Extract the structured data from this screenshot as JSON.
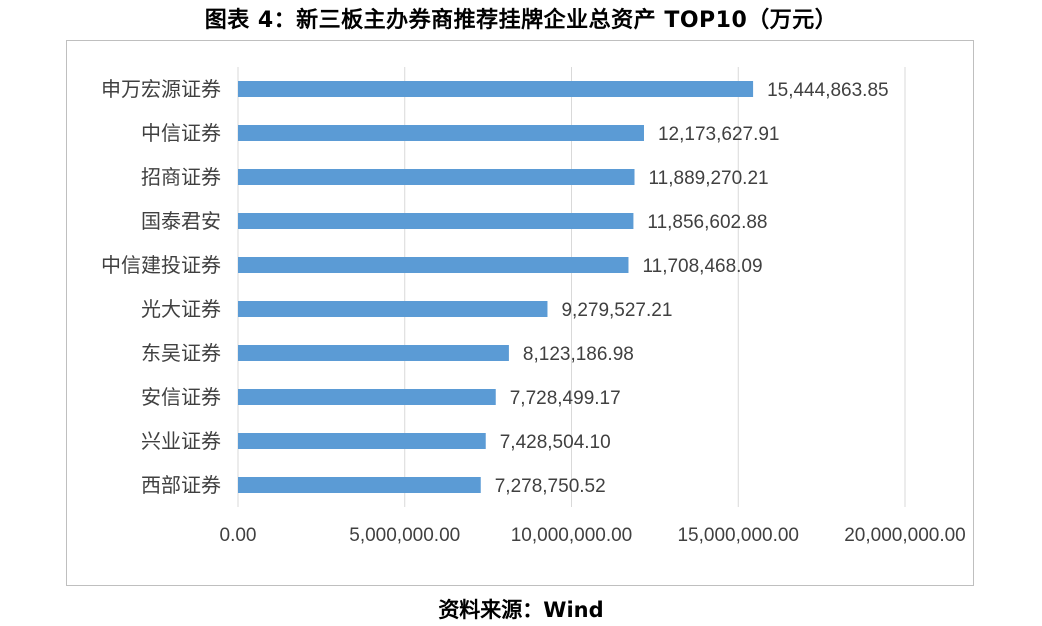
{
  "title": "图表 4：新三板主办券商推荐挂牌企业总资产 TOP10（万元）",
  "source": "资料来源：Wind",
  "colors": {
    "bar": "#5b9bd5",
    "grid": "#d9d9d9",
    "text": "#404040"
  },
  "chart_data": {
    "type": "bar",
    "orientation": "horizontal",
    "categories": [
      "申万宏源证券",
      "中信证券",
      "招商证券",
      "国泰君安",
      "中信建投证券",
      "光大证券",
      "东吴证券",
      "安信证券",
      "兴业证券",
      "西部证券"
    ],
    "values": [
      15444863.85,
      12173627.91,
      11889270.21,
      11856602.88,
      11708468.09,
      9279527.21,
      8123186.98,
      7728499.17,
      7428504.1,
      7278750.52
    ],
    "value_labels": [
      "15,444,863.85",
      "12,173,627.91",
      "11,889,270.21",
      "11,856,602.88",
      "11,708,468.09",
      "9,279,527.21",
      "8,123,186.98",
      "7,728,499.17",
      "7,428,504.10",
      "7,278,750.52"
    ],
    "xlim": [
      0,
      20000000
    ],
    "x_ticks": [
      0,
      5000000,
      10000000,
      15000000,
      20000000
    ],
    "x_tick_labels": [
      "0.00",
      "5,000,000.00",
      "10,000,000.00",
      "15,000,000.00",
      "20,000,000.00"
    ],
    "grid": "vertical",
    "legend": "none",
    "xlabel": "",
    "ylabel": ""
  }
}
